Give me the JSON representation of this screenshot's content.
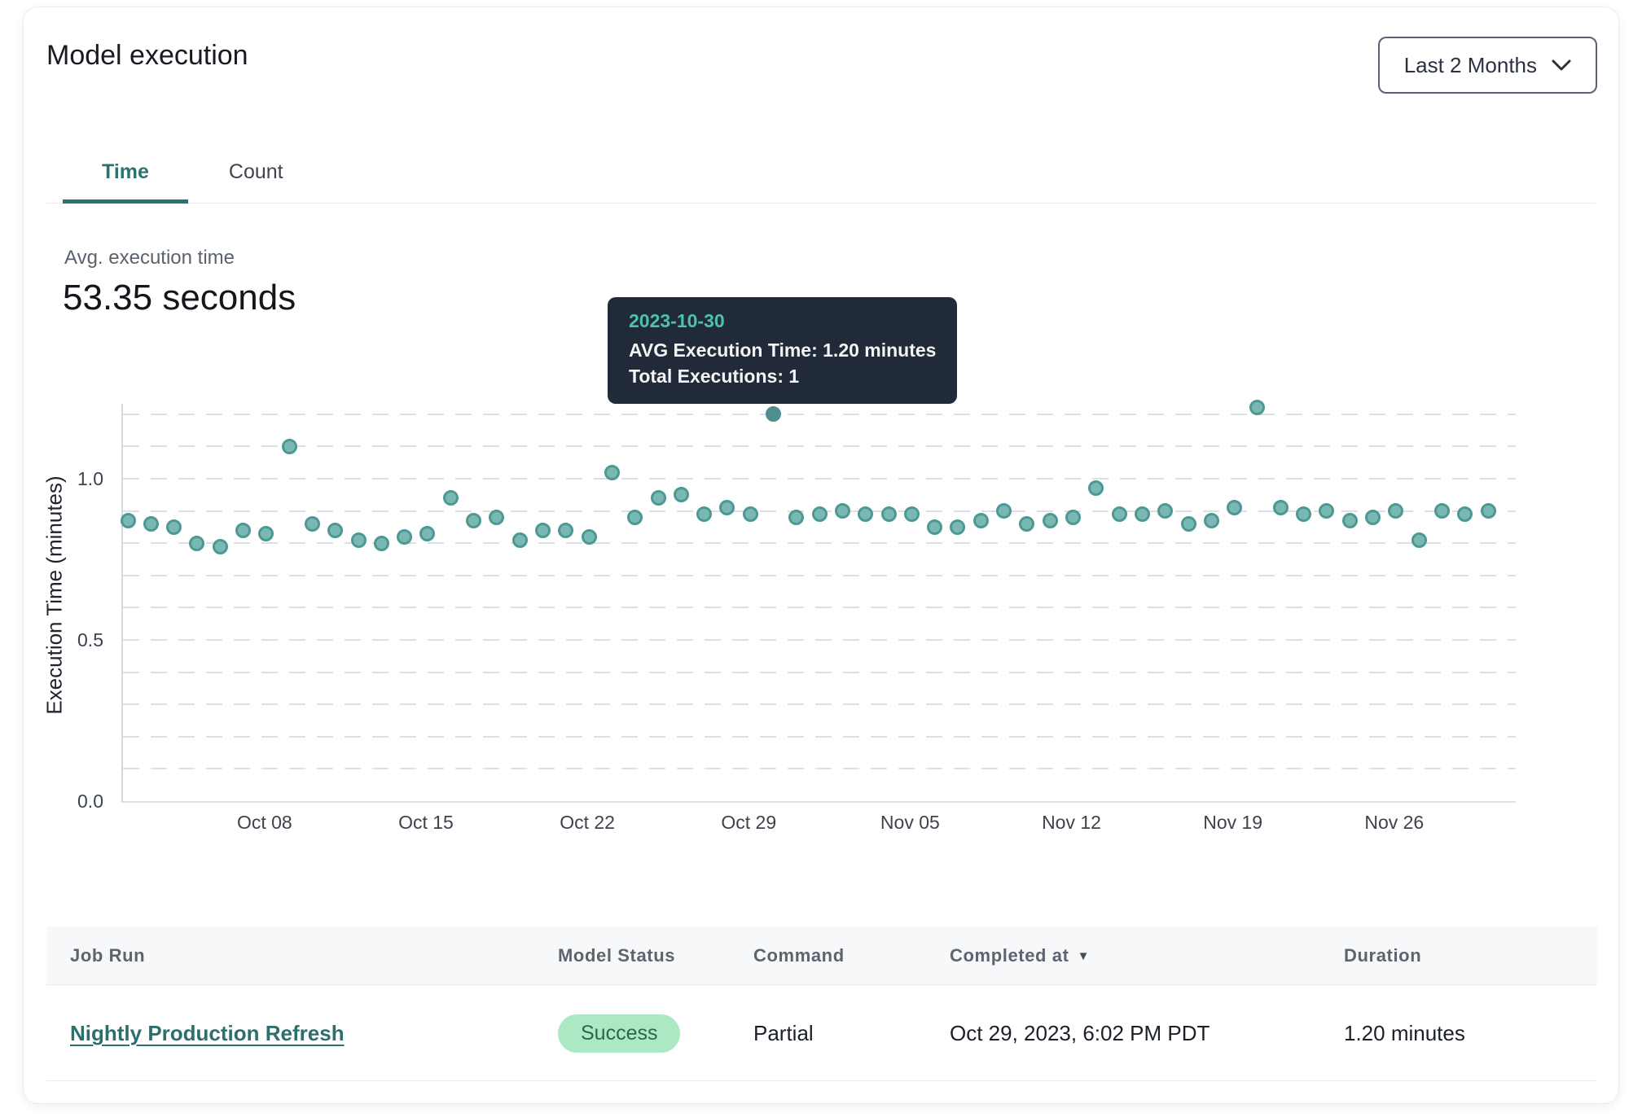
{
  "header": {
    "title": "Model execution",
    "range_selector": {
      "label": "Last 2 Months"
    }
  },
  "tabs": [
    {
      "label": "Time",
      "active": true
    },
    {
      "label": "Count",
      "active": false
    }
  ],
  "metric": {
    "label": "Avg. execution time",
    "value": "53.35 seconds"
  },
  "tooltip": {
    "date": "2023-10-30",
    "line1": "AVG Execution Time: 1.20 minutes",
    "line2": "Total Executions: 1"
  },
  "chart_data": {
    "type": "scatter",
    "title": "",
    "xlabel": "",
    "ylabel": "Execution Time (minutes)",
    "ylim": [
      0,
      1.25
    ],
    "grid": "horizontal dashed every 0.1 from 0.1 to 1.2",
    "legend": "none",
    "colors": {
      "point_fill": "#79b8b3",
      "point_stroke": "#4e9894",
      "selected_point": "#4f8e8f"
    },
    "y_ticks": [
      {
        "label": "0.0",
        "value": 0.0
      },
      {
        "label": "0.5",
        "value": 0.5
      },
      {
        "label": "1.0",
        "value": 1.0
      }
    ],
    "x_ticks": [
      {
        "label": "Oct 08",
        "index": 6
      },
      {
        "label": "Oct 15",
        "index": 13
      },
      {
        "label": "Oct 22",
        "index": 20
      },
      {
        "label": "Oct 29",
        "index": 27
      },
      {
        "label": "Nov 05",
        "index": 34
      },
      {
        "label": "Nov 12",
        "index": 41
      },
      {
        "label": "Nov 19",
        "index": 48
      },
      {
        "label": "Nov 26",
        "index": 55
      }
    ],
    "points": [
      {
        "date": "2023-10-02",
        "value": 0.87
      },
      {
        "date": "2023-10-03",
        "value": 0.86
      },
      {
        "date": "2023-10-04",
        "value": 0.85
      },
      {
        "date": "2023-10-05",
        "value": 0.8
      },
      {
        "date": "2023-10-06",
        "value": 0.79
      },
      {
        "date": "2023-10-07",
        "value": 0.84
      },
      {
        "date": "2023-10-08",
        "value": 0.83
      },
      {
        "date": "2023-10-09",
        "value": 1.1
      },
      {
        "date": "2023-10-10",
        "value": 0.86
      },
      {
        "date": "2023-10-11",
        "value": 0.84
      },
      {
        "date": "2023-10-12",
        "value": 0.81
      },
      {
        "date": "2023-10-13",
        "value": 0.8
      },
      {
        "date": "2023-10-14",
        "value": 0.82
      },
      {
        "date": "2023-10-15",
        "value": 0.83
      },
      {
        "date": "2023-10-16",
        "value": 0.94
      },
      {
        "date": "2023-10-17",
        "value": 0.87
      },
      {
        "date": "2023-10-18",
        "value": 0.88
      },
      {
        "date": "2023-10-19",
        "value": 0.81
      },
      {
        "date": "2023-10-20",
        "value": 0.84
      },
      {
        "date": "2023-10-21",
        "value": 0.84
      },
      {
        "date": "2023-10-22",
        "value": 0.82
      },
      {
        "date": "2023-10-23",
        "value": 1.02
      },
      {
        "date": "2023-10-24",
        "value": 0.88
      },
      {
        "date": "2023-10-25",
        "value": 0.94
      },
      {
        "date": "2023-10-26",
        "value": 0.95
      },
      {
        "date": "2023-10-27",
        "value": 0.89
      },
      {
        "date": "2023-10-28",
        "value": 0.91
      },
      {
        "date": "2023-10-29",
        "value": 0.89
      },
      {
        "date": "2023-10-30",
        "value": 1.2,
        "selected": true
      },
      {
        "date": "2023-10-31",
        "value": 0.88
      },
      {
        "date": "2023-11-01",
        "value": 0.89
      },
      {
        "date": "2023-11-02",
        "value": 0.9
      },
      {
        "date": "2023-11-03",
        "value": 0.89
      },
      {
        "date": "2023-11-04",
        "value": 0.89
      },
      {
        "date": "2023-11-05",
        "value": 0.89
      },
      {
        "date": "2023-11-06",
        "value": 0.85
      },
      {
        "date": "2023-11-07",
        "value": 0.85
      },
      {
        "date": "2023-11-08",
        "value": 0.87
      },
      {
        "date": "2023-11-09",
        "value": 0.9
      },
      {
        "date": "2023-11-10",
        "value": 0.86
      },
      {
        "date": "2023-11-11",
        "value": 0.87
      },
      {
        "date": "2023-11-12",
        "value": 0.88
      },
      {
        "date": "2023-11-13",
        "value": 0.97
      },
      {
        "date": "2023-11-14",
        "value": 0.89
      },
      {
        "date": "2023-11-15",
        "value": 0.89
      },
      {
        "date": "2023-11-16",
        "value": 0.9
      },
      {
        "date": "2023-11-17",
        "value": 0.86
      },
      {
        "date": "2023-11-18",
        "value": 0.87
      },
      {
        "date": "2023-11-19",
        "value": 0.91
      },
      {
        "date": "2023-11-20",
        "value": 1.22
      },
      {
        "date": "2023-11-21",
        "value": 0.91
      },
      {
        "date": "2023-11-22",
        "value": 0.89
      },
      {
        "date": "2023-11-23",
        "value": 0.9
      },
      {
        "date": "2023-11-24",
        "value": 0.87
      },
      {
        "date": "2023-11-25",
        "value": 0.88
      },
      {
        "date": "2023-11-26",
        "value": 0.9
      },
      {
        "date": "2023-11-27",
        "value": 0.81
      },
      {
        "date": "2023-11-28",
        "value": 0.9
      },
      {
        "date": "2023-11-29",
        "value": 0.89
      },
      {
        "date": "2023-11-30",
        "value": 0.9
      }
    ]
  },
  "table": {
    "columns": [
      {
        "label": "Job Run",
        "sorted": ""
      },
      {
        "label": "Model Status",
        "sorted": ""
      },
      {
        "label": "Command",
        "sorted": ""
      },
      {
        "label": "Completed at",
        "sorted": "desc"
      },
      {
        "label": "Duration",
        "sorted": ""
      }
    ],
    "rows": [
      {
        "job_run": "Nightly Production Refresh",
        "model_status": "Success",
        "command": "Partial",
        "completed_at": "Oct 29, 2023, 6:02 PM PDT",
        "duration": "1.20 minutes"
      }
    ]
  }
}
